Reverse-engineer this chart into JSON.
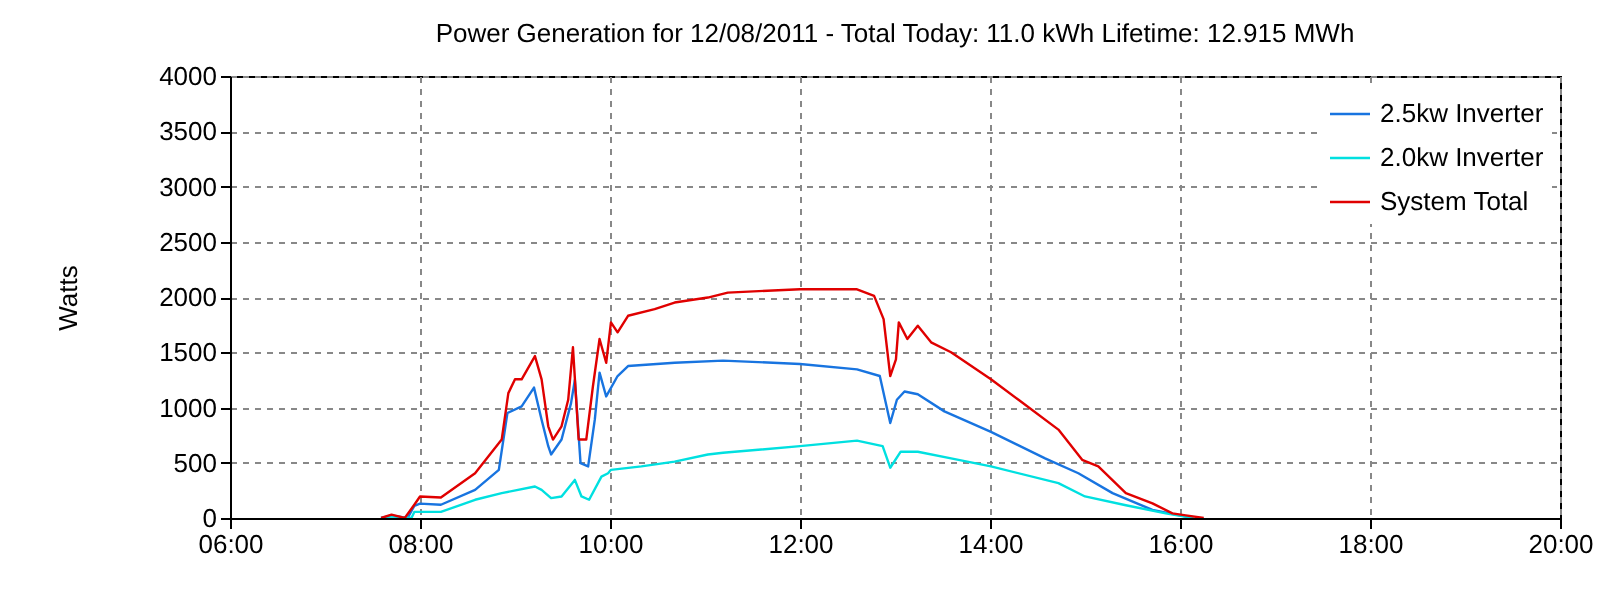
{
  "chart_data": {
    "type": "line",
    "title": "Power Generation for 12/08/2011 - Total Today: 11.0 kWh   Lifetime: 12.915 MWh",
    "ylabel": "Watts",
    "xlim": [
      6,
      20
    ],
    "xticks": [
      {
        "value": 6,
        "label": "06:00"
      },
      {
        "value": 8,
        "label": "08:00"
      },
      {
        "value": 10,
        "label": "10:00"
      },
      {
        "value": 12,
        "label": "12:00"
      },
      {
        "value": 14,
        "label": "14:00"
      },
      {
        "value": 16,
        "label": "16:00"
      },
      {
        "value": 18,
        "label": "18:00"
      },
      {
        "value": 20,
        "label": "20:00"
      }
    ],
    "ylim": [
      0,
      4000
    ],
    "yticks": [
      0,
      500,
      1000,
      1500,
      2000,
      2500,
      3000,
      3500,
      4000
    ],
    "grid": true,
    "legend": "top right",
    "marker": "none",
    "line_style": "solid",
    "series": [
      {
        "name": "2.5kw Inverter",
        "color": "#1874e0",
        "x": [
          7.59,
          7.7,
          7.87,
          7.94,
          8.0,
          8.22,
          8.58,
          8.83,
          8.92,
          9.07,
          9.2,
          9.28,
          9.35,
          9.38,
          9.49,
          9.59,
          9.63,
          9.69,
          9.77,
          9.84,
          9.89,
          9.96,
          10.08,
          10.19,
          10.68,
          11.19,
          12.0,
          12.6,
          12.84,
          12.95,
          13.02,
          13.1,
          13.24,
          13.52,
          14.01,
          14.58,
          14.93,
          15.29,
          15.71,
          16.0,
          16.14
        ],
        "values": [
          0,
          20,
          0,
          110,
          130,
          120,
          255,
          436,
          950,
          1010,
          1180,
          890,
          650,
          575,
          710,
          1040,
          1250,
          497,
          467,
          890,
          1315,
          1100,
          1285,
          1375,
          1405,
          1424,
          1394,
          1345,
          1285,
          860,
          1070,
          1145,
          1120,
          965,
          780,
          540,
          405,
          225,
          73,
          24,
          0
        ]
      },
      {
        "name": "2.0kw Inverter",
        "color": "#00e0e0",
        "x": [
          7.59,
          7.7,
          7.91,
          7.94,
          8.22,
          8.58,
          8.86,
          9.21,
          9.28,
          9.38,
          9.49,
          9.63,
          9.7,
          9.78,
          9.91,
          9.98,
          10.01,
          10.33,
          10.68,
          11.03,
          11.19,
          12.0,
          12.6,
          12.87,
          12.95,
          13.06,
          13.24,
          13.59,
          14.01,
          14.72,
          15.0,
          15.43,
          15.85,
          16.14
        ],
        "values": [
          0,
          15,
          0,
          55,
          55,
          165,
          225,
          285,
          255,
          180,
          195,
          345,
          195,
          165,
          375,
          405,
          436,
          467,
          510,
          575,
          590,
          650,
          700,
          650,
          455,
          600,
          600,
          540,
          467,
          315,
          195,
          115,
          42,
          0
        ]
      },
      {
        "name": "System Total",
        "color": "#e00000",
        "x": [
          7.59,
          7.7,
          7.84,
          7.94,
          8.0,
          8.22,
          8.58,
          8.86,
          8.93,
          9.0,
          9.07,
          9.21,
          9.28,
          9.35,
          9.4,
          9.49,
          9.56,
          9.61,
          9.67,
          9.75,
          9.82,
          9.89,
          9.96,
          10.01,
          10.08,
          10.19,
          10.47,
          10.68,
          11.03,
          11.24,
          12.0,
          12.6,
          12.78,
          12.88,
          12.95,
          13.01,
          13.04,
          13.13,
          13.24,
          13.38,
          13.59,
          14.01,
          14.3,
          14.72,
          14.97,
          15.14,
          15.43,
          15.71,
          15.92,
          16.06,
          16.25
        ],
        "values": [
          0,
          30,
          0,
          120,
          195,
          185,
          405,
          710,
          1130,
          1255,
          1255,
          1465,
          1255,
          830,
          710,
          830,
          1070,
          1545,
          710,
          710,
          1190,
          1620,
          1405,
          1770,
          1680,
          1830,
          1890,
          1950,
          1995,
          2040,
          2070,
          2070,
          2010,
          1800,
          1285,
          1435,
          1770,
          1620,
          1740,
          1590,
          1500,
          1255,
          1070,
          800,
          527,
          467,
          225,
          133,
          42,
          24,
          0
        ]
      }
    ]
  }
}
